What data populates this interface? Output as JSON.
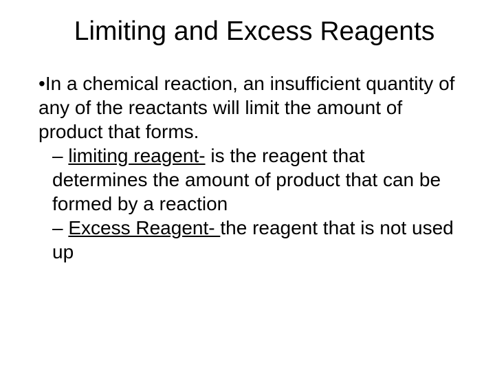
{
  "title": "Limiting and Excess Reagents",
  "bullet_symbol": "•",
  "dash_symbol": "–",
  "main_point": "In a chemical reaction, an insufficient quantity of any of the reactants will limit the amount of product that forms.",
  "sub1_term": "limiting reagent-",
  "sub1_rest": " is the reagent that determines the amount of product that can be formed by a reaction",
  "sub2_term": "Excess Reagent- ",
  "sub2_rest": "the reagent that is not used up",
  "colors": {
    "background": "#ffffff",
    "text": "#000000"
  },
  "typography": {
    "title_fontsize": 39,
    "body_fontsize": 28,
    "font_family": "Arial"
  }
}
